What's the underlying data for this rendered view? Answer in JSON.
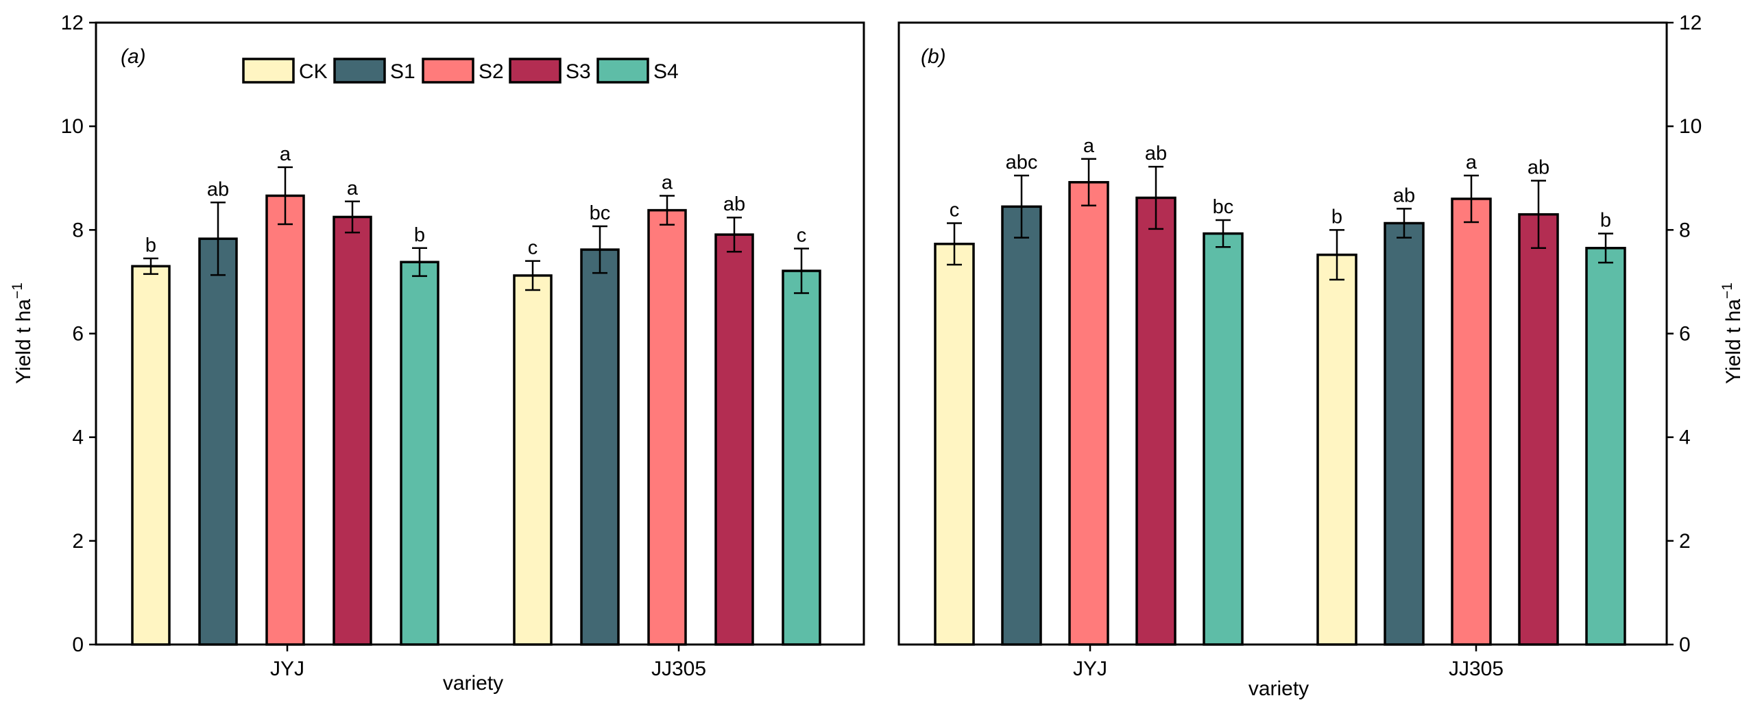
{
  "chart_data": [
    {
      "type": "bar",
      "panel_label": "(a)",
      "categories": [
        "JYJ",
        "JJ305"
      ],
      "xlabel": "variety",
      "ylabel": "Yield t ha",
      "ylabel_sup": "−1",
      "ylim": [
        0,
        12
      ],
      "yticks": [
        "0",
        "2",
        "4",
        "6",
        "8",
        "10",
        "12"
      ],
      "y_axis_side": "left",
      "legend_position": "top-center",
      "series": [
        {
          "name": "CK",
          "color": "#FFF5C2",
          "values": [
            7.3,
            7.12
          ],
          "errors": [
            0.15,
            0.28
          ],
          "labels": [
            "b",
            "c"
          ]
        },
        {
          "name": "S1",
          "color": "#426873",
          "values": [
            7.83,
            7.62
          ],
          "errors": [
            0.7,
            0.45
          ],
          "labels": [
            "ab",
            "bc"
          ]
        },
        {
          "name": "S2",
          "color": "#FF7B7B",
          "values": [
            8.66,
            8.38
          ],
          "errors": [
            0.55,
            0.28
          ],
          "labels": [
            "a",
            "a"
          ]
        },
        {
          "name": "S3",
          "color": "#B32D52",
          "values": [
            8.25,
            7.91
          ],
          "errors": [
            0.3,
            0.33
          ],
          "labels": [
            "a",
            "ab"
          ]
        },
        {
          "name": "S4",
          "color": "#5EBDA7",
          "values": [
            7.38,
            7.21
          ],
          "errors": [
            0.27,
            0.43
          ],
          "labels": [
            "b",
            "c"
          ]
        }
      ]
    },
    {
      "type": "bar",
      "panel_label": "(b)",
      "categories": [
        "JYJ",
        "JJ305"
      ],
      "xlabel": "variety",
      "ylabel": "Yield t ha",
      "ylabel_sup": "−1",
      "ylim": [
        0,
        12
      ],
      "yticks": [
        "0",
        "2",
        "4",
        "6",
        "8",
        "10",
        "12"
      ],
      "y_axis_side": "right",
      "series": [
        {
          "name": "CK",
          "color": "#FFF5C2",
          "values": [
            7.73,
            7.52
          ],
          "errors": [
            0.4,
            0.48
          ],
          "labels": [
            "c",
            "b"
          ]
        },
        {
          "name": "S1",
          "color": "#426873",
          "values": [
            8.45,
            8.13
          ],
          "errors": [
            0.6,
            0.28
          ],
          "labels": [
            "abc",
            "ab"
          ]
        },
        {
          "name": "S2",
          "color": "#FF7B7B",
          "values": [
            8.92,
            8.6
          ],
          "errors": [
            0.45,
            0.45
          ],
          "labels": [
            "a",
            "a"
          ]
        },
        {
          "name": "S3",
          "color": "#B32D52",
          "values": [
            8.62,
            8.3
          ],
          "errors": [
            0.6,
            0.65
          ],
          "labels": [
            "ab",
            "ab"
          ]
        },
        {
          "name": "S4",
          "color": "#5EBDA7",
          "values": [
            7.93,
            7.65
          ],
          "errors": [
            0.26,
            0.28
          ],
          "labels": [
            "bc",
            "b"
          ]
        }
      ]
    }
  ]
}
